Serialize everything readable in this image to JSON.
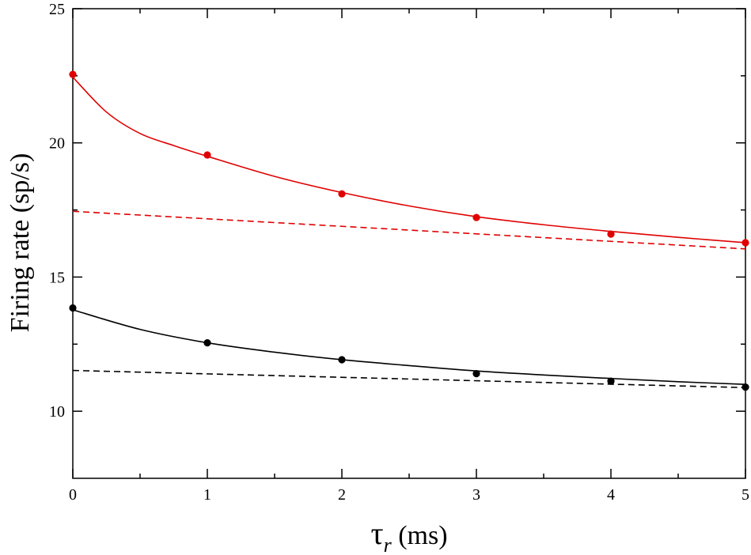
{
  "chart_data": {
    "type": "line",
    "xlabel": "τ",
    "xlabel_sub": "r",
    "xlabel_unit": " (ms)",
    "ylabel": "Firing rate (sp/s)",
    "xlim": [
      0,
      5
    ],
    "ylim": [
      7.5,
      25
    ],
    "x_ticks": [
      "0",
      "1",
      "2",
      "3",
      "4",
      "5"
    ],
    "y_ticks": [
      "10",
      "15",
      "20",
      "25"
    ],
    "x_tick_values": [
      0,
      1,
      2,
      3,
      4,
      5
    ],
    "y_tick_values": [
      10,
      15,
      20,
      25
    ],
    "x_minor_ticks": [
      0.5,
      1.5,
      2.5,
      3.5,
      4.5
    ],
    "y_minor_ticks": [
      12.5,
      17.5,
      22.5
    ],
    "grid": false,
    "series": [
      {
        "kind": "points",
        "color": "#e00000",
        "x": [
          0,
          1,
          2,
          3,
          4,
          5
        ],
        "y": [
          22.55,
          19.55,
          18.1,
          17.22,
          16.6,
          16.28
        ]
      },
      {
        "kind": "solid",
        "color": "#e00000",
        "x": [
          0,
          0.25,
          0.5,
          0.75,
          1,
          1.5,
          2,
          2.5,
          3,
          3.5,
          4,
          4.5,
          5
        ],
        "y": [
          22.45,
          21.15,
          20.35,
          19.9,
          19.5,
          18.75,
          18.15,
          17.65,
          17.25,
          16.95,
          16.7,
          16.48,
          16.28
        ]
      },
      {
        "kind": "dashed",
        "color": "#e00000",
        "x": [
          0,
          5
        ],
        "y": [
          17.45,
          16.05
        ]
      },
      {
        "kind": "points",
        "color": "#000000",
        "x": [
          0,
          1,
          2,
          3,
          4,
          5
        ],
        "y": [
          13.85,
          12.55,
          11.92,
          11.4,
          11.12,
          10.9
        ]
      },
      {
        "kind": "solid",
        "color": "#000000",
        "x": [
          0,
          0.5,
          1,
          1.5,
          2,
          2.5,
          3,
          3.5,
          4,
          4.5,
          5
        ],
        "y": [
          13.78,
          13.05,
          12.55,
          12.2,
          11.92,
          11.7,
          11.5,
          11.35,
          11.22,
          11.1,
          11.0
        ]
      },
      {
        "kind": "dashed",
        "color": "#000000",
        "x": [
          0,
          5
        ],
        "y": [
          11.52,
          10.88
        ]
      }
    ]
  }
}
